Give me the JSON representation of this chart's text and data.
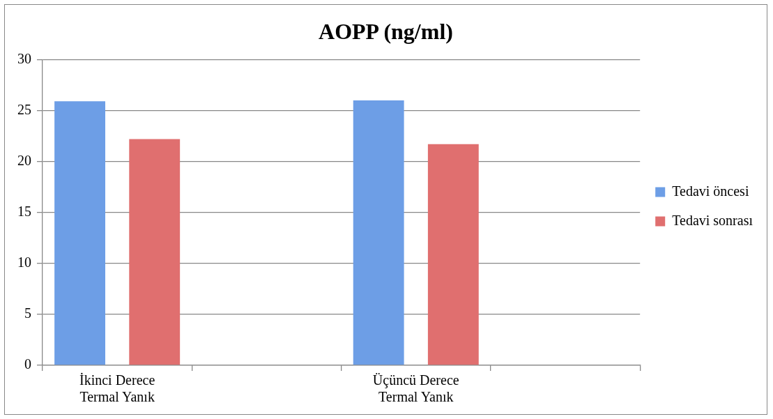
{
  "chart_data": {
    "type": "bar",
    "title": "AOPP (ng/ml)",
    "categories": [
      "İkinci Derece Termal Yanık",
      null,
      "Üçüncü Derece Termal Yanık",
      null
    ],
    "series": [
      {
        "name": "Tedavi öncesi",
        "color": "#6d9ee6",
        "values": [
          25.9,
          null,
          26.0,
          null
        ]
      },
      {
        "name": "Tedavi sonrası",
        "color": "#e06f6f",
        "values": [
          22.2,
          null,
          21.7,
          null
        ]
      }
    ],
    "ylim": [
      0,
      30
    ],
    "yticks": [
      0,
      5,
      10,
      15,
      20,
      25,
      30
    ],
    "grid": "y",
    "legend": "right"
  }
}
